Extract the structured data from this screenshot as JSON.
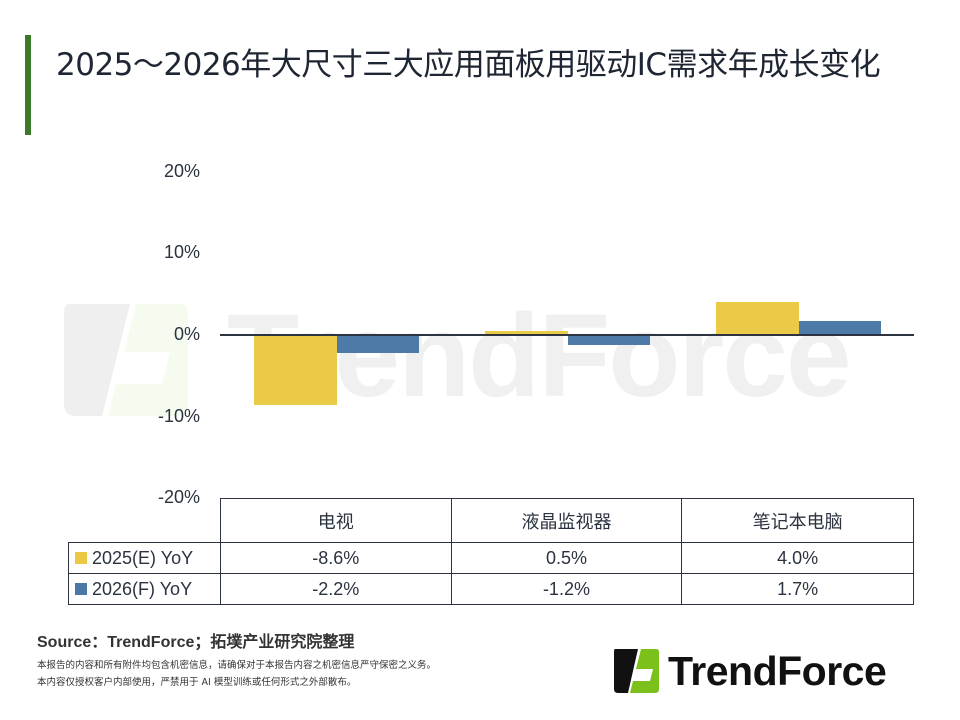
{
  "header": {
    "title": "2025～2026年大尺寸三大应用面板用驱动IC需求年成长变化",
    "accent_color": "#3d7a27"
  },
  "chart_data": {
    "type": "bar",
    "title": "2025～2026年大尺寸三大应用面板用驱动IC需求年成长变化",
    "xlabel": "",
    "ylabel": "",
    "ylim": [
      -20,
      20
    ],
    "yticks": [
      "20%",
      "10%",
      "0%",
      "-10%",
      "-20%"
    ],
    "categories": [
      "电视",
      "液晶监视器",
      "笔记本电脑"
    ],
    "series": [
      {
        "name": "2025(E) YoY",
        "values": [
          -8.6,
          0.5,
          4.0
        ],
        "labels": [
          "-8.6%",
          "0.5%",
          "4.0%"
        ],
        "color": "#ebc944"
      },
      {
        "name": "2026(F) YoY",
        "values": [
          -2.2,
          -1.2,
          1.7
        ],
        "labels": [
          "-2.2%",
          "-1.2%",
          "1.7%"
        ],
        "color": "#4a77a6"
      }
    ],
    "grid": false,
    "legend_position": "data-table"
  },
  "footer": {
    "source": "Source：TrendForce；拓墣产业研究院整理",
    "disclaimer_1": "本报告的内容和所有附件均包含机密信息，请确保对于本报告内容之机密信息严守保密之义务。",
    "disclaimer_2": "本内容仅授权客户内部使用，严禁用于 AI 模型训练或任何形式之外部散布。",
    "logo_text": "TrendForce"
  },
  "watermark": {
    "text": "TrendForce"
  }
}
